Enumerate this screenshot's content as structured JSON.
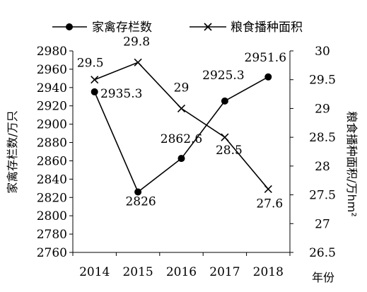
{
  "chart_data": {
    "type": "line",
    "categories": [
      "2014",
      "2015",
      "2016",
      "2017",
      "2018"
    ],
    "xlabel": "年份",
    "series": [
      {
        "name": "家禽存栏数",
        "axis": "left",
        "marker": "circle",
        "values": [
          2935.3,
          2826,
          2862.6,
          2925.3,
          2951.6
        ],
        "labels": [
          "2935.3",
          "2826",
          "2862.6",
          "2925.3",
          "2951.6"
        ]
      },
      {
        "name": "粮食播种面积",
        "axis": "right",
        "marker": "x",
        "values": [
          29.5,
          29.8,
          29,
          28.5,
          27.6
        ],
        "labels": [
          "29.5",
          "29.8",
          "29",
          "28.5",
          "27.6"
        ]
      }
    ],
    "y_left": {
      "label": "家禽存栏数/万只",
      "range": [
        2760,
        2980
      ],
      "ticks": [
        "2760",
        "2780",
        "2800",
        "2820",
        "2840",
        "2860",
        "2880",
        "2900",
        "2920",
        "2940",
        "2960",
        "2980"
      ]
    },
    "y_right": {
      "label": "粮食播种面积/万hm²",
      "range": [
        26.5,
        30
      ],
      "ticks": [
        "26.5",
        "27",
        "27.5",
        "28",
        "28.5",
        "29",
        "29.5",
        "30"
      ]
    },
    "grid": false,
    "legend": "top"
  }
}
